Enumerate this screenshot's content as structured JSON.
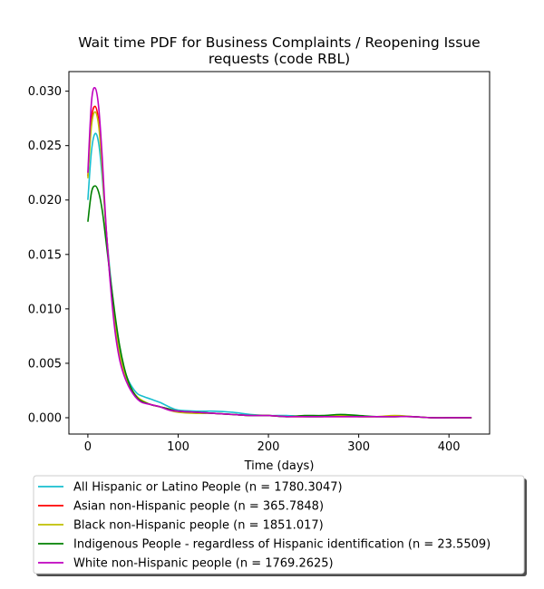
{
  "chart_data": {
    "type": "line",
    "title": "Wait time PDF for Business Complaints / Reopening Issue requests (code RBL)",
    "title_lines": [
      "Wait time PDF for Business Complaints / Reopening Issue",
      "requests (code RBL)"
    ],
    "xlabel": "Time (days)",
    "ylabel": "",
    "xlim": [
      -21,
      445
    ],
    "ylim": [
      -0.0015,
      0.0318
    ],
    "xticks": [
      0,
      100,
      200,
      300,
      400
    ],
    "xtick_labels": [
      "0",
      "100",
      "200",
      "300",
      "400"
    ],
    "yticks": [
      0.0,
      0.005,
      0.01,
      0.015,
      0.02,
      0.025,
      0.03
    ],
    "ytick_labels": [
      "0.000",
      "0.005",
      "0.010",
      "0.015",
      "0.020",
      "0.025",
      "0.030"
    ],
    "grid": false,
    "legend_placement": "below-axes",
    "series": [
      {
        "name": "All Hispanic or Latino People (n = 1780.3047)",
        "color": "#17becf",
        "x": [
          0,
          4,
          8,
          12,
          16,
          20,
          25,
          30,
          35,
          40,
          45,
          50,
          55,
          60,
          70,
          80,
          90,
          100,
          120,
          140,
          160,
          180,
          200,
          220,
          240,
          260,
          280,
          300,
          320,
          340,
          360,
          380,
          400,
          425
        ],
        "y": [
          0.02,
          0.0245,
          0.0261,
          0.0252,
          0.022,
          0.0175,
          0.013,
          0.0092,
          0.0063,
          0.0045,
          0.0034,
          0.0027,
          0.0022,
          0.002,
          0.0017,
          0.0014,
          0.001,
          0.0007,
          0.0006,
          0.0006,
          0.0005,
          0.0003,
          0.0002,
          0.0002,
          0.0001,
          0.0001,
          0.0002,
          0.0001,
          0.0001,
          0.0001,
          0.0001,
          0.0,
          0.0,
          0.0
        ]
      },
      {
        "name": "Asian non-Hispanic people (n = 365.7848)",
        "color": "#ff0000",
        "x": [
          0,
          4,
          8,
          12,
          16,
          20,
          25,
          30,
          35,
          40,
          45,
          50,
          55,
          60,
          70,
          80,
          90,
          100,
          120,
          140,
          160,
          180,
          200,
          220,
          240,
          260,
          280,
          300,
          320,
          340,
          360,
          380,
          400,
          425
        ],
        "y": [
          0.0222,
          0.0274,
          0.0286,
          0.0272,
          0.023,
          0.0176,
          0.0125,
          0.0085,
          0.0058,
          0.0041,
          0.003,
          0.0023,
          0.0018,
          0.0015,
          0.0012,
          0.001,
          0.0008,
          0.0006,
          0.0005,
          0.0004,
          0.0003,
          0.0002,
          0.0002,
          0.0001,
          0.0001,
          0.0001,
          0.0001,
          0.0001,
          0.0001,
          0.0001,
          0.0001,
          0.0,
          0.0,
          0.0
        ]
      },
      {
        "name": "Black non-Hispanic people (n = 1851.017)",
        "color": "#bfbf00",
        "x": [
          0,
          4,
          8,
          12,
          16,
          20,
          25,
          30,
          35,
          40,
          45,
          50,
          55,
          60,
          70,
          80,
          90,
          100,
          120,
          140,
          160,
          180,
          200,
          220,
          240,
          260,
          280,
          300,
          320,
          340,
          360,
          380,
          400,
          425
        ],
        "y": [
          0.022,
          0.0268,
          0.0281,
          0.0268,
          0.0228,
          0.0175,
          0.0125,
          0.0086,
          0.0059,
          0.0042,
          0.0031,
          0.0024,
          0.0019,
          0.0016,
          0.0012,
          0.001,
          0.0007,
          0.0005,
          0.0004,
          0.0004,
          0.0003,
          0.0002,
          0.0002,
          0.0001,
          0.0001,
          0.0001,
          0.0002,
          0.0001,
          0.0001,
          0.0002,
          0.0001,
          0.0,
          0.0,
          0.0
        ]
      },
      {
        "name": "Indigenous People - regardless of Hispanic identification (n = 23.5509)",
        "color": "#008000",
        "x": [
          0,
          4,
          8,
          12,
          16,
          20,
          25,
          30,
          35,
          40,
          45,
          50,
          55,
          60,
          70,
          80,
          90,
          100,
          120,
          140,
          160,
          180,
          200,
          220,
          240,
          260,
          280,
          300,
          320,
          340,
          360,
          380,
          400,
          425
        ],
        "y": [
          0.018,
          0.0207,
          0.0213,
          0.0207,
          0.019,
          0.0163,
          0.0128,
          0.0095,
          0.0067,
          0.0047,
          0.0033,
          0.0024,
          0.0018,
          0.0015,
          0.0012,
          0.001,
          0.0008,
          0.0006,
          0.0005,
          0.0004,
          0.0003,
          0.0002,
          0.0002,
          0.0001,
          0.0002,
          0.0002,
          0.0003,
          0.0002,
          0.0001,
          0.0001,
          0.0001,
          0.0,
          0.0,
          0.0
        ]
      },
      {
        "name": "White non-Hispanic people (n = 1769.2625)",
        "color": "#bf00bf",
        "x": [
          0,
          4,
          8,
          12,
          16,
          20,
          25,
          30,
          35,
          40,
          45,
          50,
          55,
          60,
          70,
          80,
          90,
          100,
          120,
          140,
          160,
          180,
          200,
          220,
          240,
          260,
          280,
          300,
          320,
          340,
          360,
          380,
          400,
          425
        ],
        "y": [
          0.0225,
          0.029,
          0.0303,
          0.0285,
          0.0238,
          0.0178,
          0.0122,
          0.008,
          0.0054,
          0.0039,
          0.0029,
          0.0022,
          0.0017,
          0.0014,
          0.0012,
          0.001,
          0.0007,
          0.0006,
          0.0005,
          0.0004,
          0.0003,
          0.0002,
          0.0002,
          0.0001,
          0.0001,
          0.0001,
          0.0001,
          0.0001,
          0.0001,
          0.0001,
          0.0001,
          0.0,
          0.0,
          0.0
        ]
      }
    ]
  }
}
